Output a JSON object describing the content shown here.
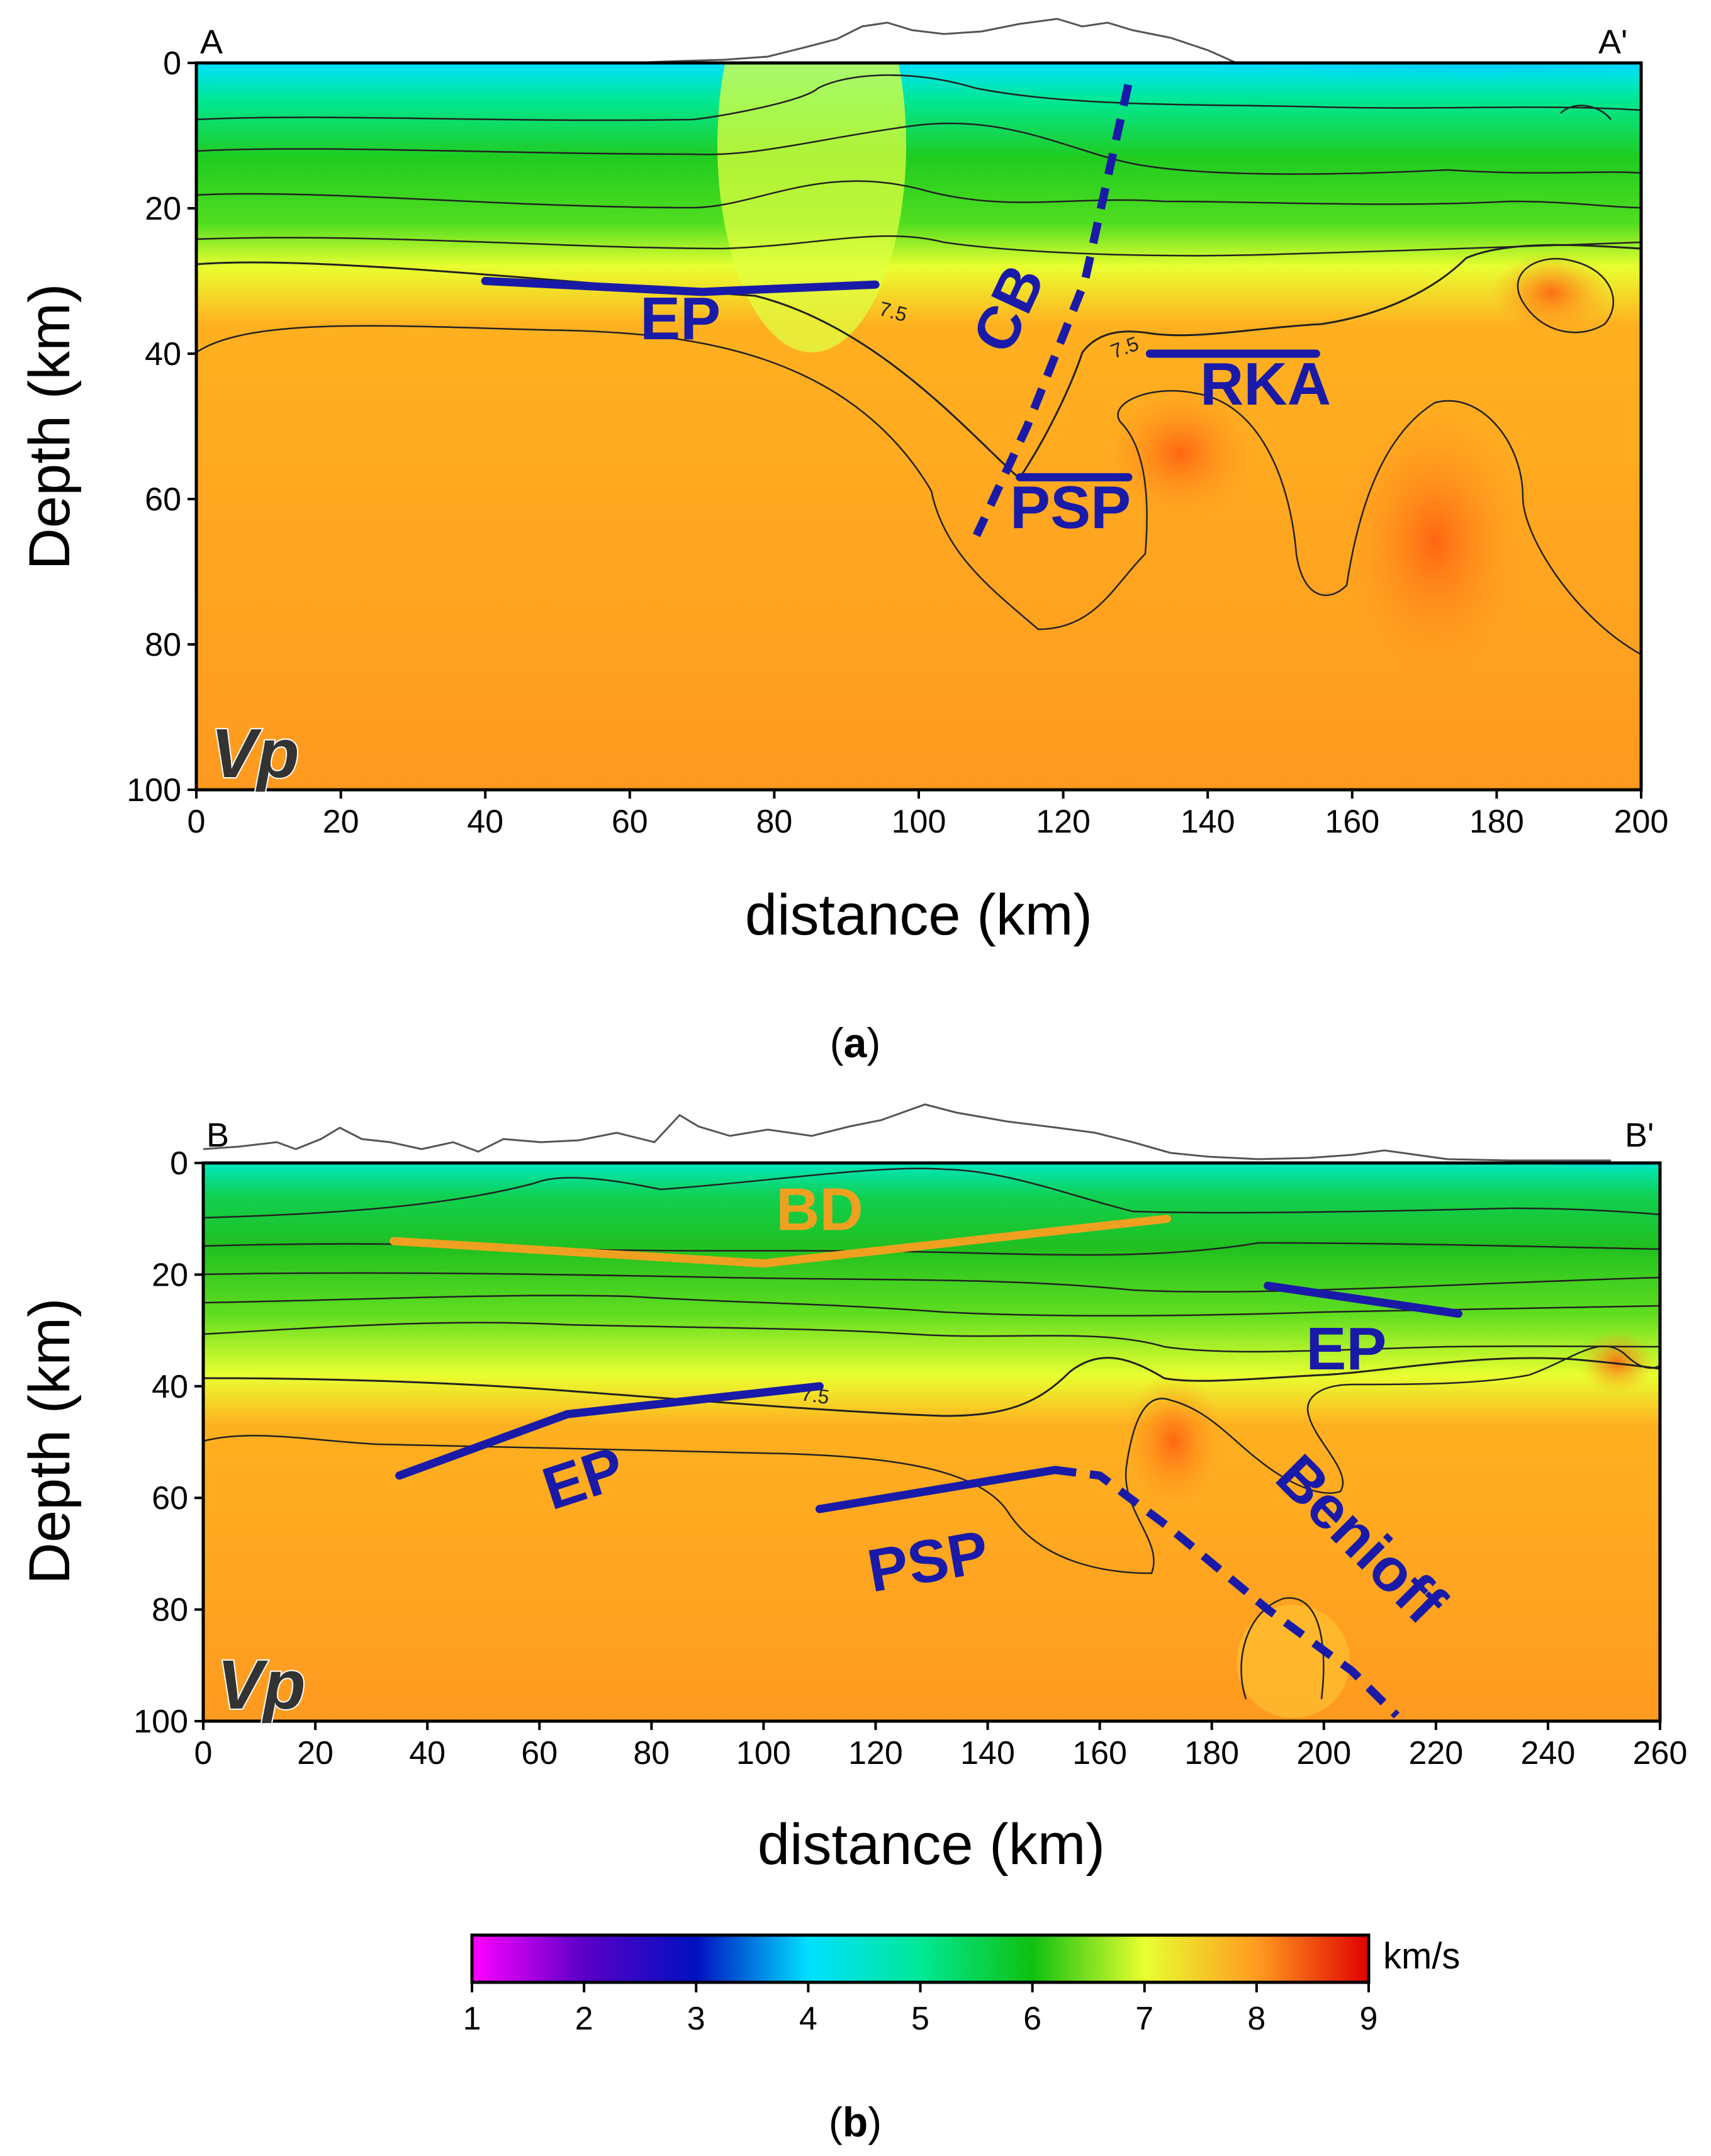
{
  "figure": {
    "panels": [
      {
        "id": "a",
        "caption": "(a)",
        "caption_letter": "a",
        "left_label": "A",
        "right_label": "A'",
        "param_label": "Vp",
        "contour_label": "7.5",
        "chart_data": {
          "type": "heatmap",
          "title": "",
          "xlabel": "distance (km)",
          "ylabel": "Depth (km)",
          "xlim": [
            0,
            200
          ],
          "ylim": [
            0,
            100
          ],
          "x_ticks": [
            "0",
            "20",
            "40",
            "60",
            "80",
            "100",
            "120",
            "140",
            "160",
            "180",
            "200"
          ],
          "y_ticks": [
            "0",
            "20",
            "40",
            "60",
            "80",
            "100"
          ],
          "interfaces": [
            {
              "name": "EP",
              "label": "EP",
              "color": "#1a1aa8",
              "style": "solid",
              "points": [
                [
                  40,
                  30
                ],
                [
                  70,
                  31.5
                ],
                [
                  94,
                  30.5
                ]
              ],
              "label_at": [
                67,
                38
              ]
            },
            {
              "name": "CB",
              "label": "CB",
              "color": "#1a1aa8",
              "style": "dashed",
              "points": [
                [
                  129,
                  3
                ],
                [
                  123,
                  30
                ],
                [
                  115,
                  50
                ],
                [
                  108,
                  65
                ]
              ],
              "label_at": [
                115,
                35
              ],
              "label_rotate": -65
            },
            {
              "name": "RKA",
              "label": "RKA",
              "color": "#1a1aa8",
              "style": "solid",
              "points": [
                [
                  132,
                  40
                ],
                [
                  155,
                  40
                ]
              ],
              "label_at": [
                148,
                47
              ]
            },
            {
              "name": "PSP",
              "label": "PSP",
              "color": "#1a1aa8",
              "style": "solid",
              "points": [
                [
                  114,
                  57
                ],
                [
                  129,
                  57
                ]
              ],
              "label_at": [
                121,
                64
              ]
            }
          ]
        }
      },
      {
        "id": "b",
        "caption": "(b)",
        "caption_letter": "b",
        "left_label": "B",
        "right_label": "B'",
        "param_label": "Vp",
        "contour_label": "7.5",
        "chart_data": {
          "type": "heatmap",
          "title": "",
          "xlabel": "distance (km)",
          "ylabel": "Depth (km)",
          "xlim": [
            0,
            260
          ],
          "ylim": [
            0,
            100
          ],
          "x_ticks": [
            "0",
            "20",
            "40",
            "60",
            "80",
            "100",
            "120",
            "140",
            "160",
            "180",
            "200",
            "220",
            "240",
            "260"
          ],
          "y_ticks": [
            "0",
            "20",
            "40",
            "60",
            "80",
            "100"
          ],
          "interfaces": [
            {
              "name": "BD",
              "label": "BD",
              "color": "#f0a020",
              "style": "solid",
              "points": [
                [
                  34,
                  14
                ],
                [
                  100,
                  18
                ],
                [
                  172,
                  10
                ]
              ],
              "label_at": [
                110,
                12
              ]
            },
            {
              "name": "EP-east",
              "label": "EP",
              "color": "#1a1aa8",
              "style": "solid",
              "points": [
                [
                  190,
                  22
                ],
                [
                  224,
                  27
                ]
              ],
              "label_at": [
                204,
                37
              ]
            },
            {
              "name": "EP-west",
              "label": "EP",
              "color": "#1a1aa8",
              "style": "solid",
              "points": [
                [
                  35,
                  56
                ],
                [
                  65,
                  45
                ],
                [
                  110,
                  40
                ]
              ],
              "label_at": [
                69,
                60
              ],
              "label_rotate": -18
            },
            {
              "name": "PSP",
              "label": "PSP",
              "color": "#1a1aa8",
              "style": "solid",
              "points": [
                [
                  110,
                  62
                ],
                [
                  152,
                  55
                ]
              ],
              "label_at": [
                130,
                75
              ],
              "label_rotate": -10
            },
            {
              "name": "Benioff",
              "label": "Benioff",
              "color": "#1a1aa8",
              "style": "dashed",
              "points": [
                [
                  152,
                  55
                ],
                [
                  160,
                  56
                ],
                [
                  172,
                  65
                ],
                [
                  190,
                  80
                ],
                [
                  205,
                  91
                ],
                [
                  213,
                  99
                ]
              ],
              "label_at": [
                204,
                70
              ],
              "label_rotate": 45
            }
          ]
        }
      }
    ],
    "colorbar": {
      "unit": "km/s",
      "min": 1,
      "max": 9,
      "ticks": [
        "1",
        "2",
        "3",
        "4",
        "5",
        "6",
        "7",
        "8",
        "9"
      ],
      "stops": [
        {
          "value": 1,
          "color": "#ff00ff"
        },
        {
          "value": 2,
          "color": "#5a00c8"
        },
        {
          "value": 3,
          "color": "#0010c0"
        },
        {
          "value": 4,
          "color": "#00e0ff"
        },
        {
          "value": 5,
          "color": "#00e896"
        },
        {
          "value": 6,
          "color": "#10c010"
        },
        {
          "value": 7,
          "color": "#e8ff30"
        },
        {
          "value": 8,
          "color": "#ff9c20"
        },
        {
          "value": 9,
          "color": "#e00000"
        }
      ]
    }
  }
}
